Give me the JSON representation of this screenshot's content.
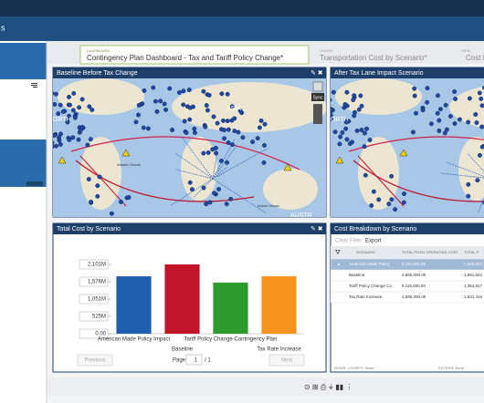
{
  "app": {
    "brand": "s"
  },
  "tabs": [
    {
      "kind": "DASHBOARD",
      "title": "Contingency Plan Dashboard - Tax and Tariff Policy Change*"
    },
    {
      "kind": "GRAPH",
      "title": "Transportation Cost by Scenario*"
    },
    {
      "kind": "VIEW",
      "title": "Cost E"
    }
  ],
  "maps": [
    {
      "title": "Baseline Before Tax Change",
      "labels": [
        "ASIA",
        "ORTH",
        "Atlantic Ocean",
        "Indian Ocean",
        "AUSTR"
      ],
      "sync": "Sync"
    },
    {
      "title": "After Tax Lane Impact Scenario",
      "labels": [
        "ORTH"
      ]
    }
  ],
  "chart_data": {
    "type": "bar",
    "title": "Total Cost by Scenario",
    "categories": [
      "American Made Policy Impact",
      "Baseline",
      "Tariff Policy Change Contingency Plan",
      "Tax Rate Increase"
    ],
    "values": [
      1740,
      2101,
      1550,
      1740
    ],
    "colors": [
      "#1f5fae",
      "#c0152a",
      "#2e9b2e",
      "#f7941d"
    ],
    "ylim": [
      0,
      2101
    ],
    "yticks": [
      {
        "value": 0,
        "label": "0.00"
      },
      {
        "value": 525,
        "label": "525M"
      },
      {
        "value": 1051,
        "label": "1,051M"
      },
      {
        "value": 1576,
        "label": "1,576M"
      },
      {
        "value": 2101,
        "label": "2,101M"
      }
    ]
  },
  "pager": {
    "previous": "Previous",
    "page": "Page",
    "current": "1",
    "total": "/ 1",
    "next": "Next"
  },
  "table": {
    "title": "Cost Breakdown by Scenario",
    "toolbar": [
      "Clear Filter",
      "Export"
    ],
    "columns": [
      "SCENARIO",
      "TOTAL FIXED OPERATING COST",
      "TOTAL P"
    ],
    "rows": [
      [
        "American Made Policy",
        "8,115,000.00",
        "1,506,822."
      ],
      [
        "Baseline",
        "4,865,000.00",
        "1,591,842."
      ],
      [
        "Tariff Policy Change Co",
        "8,115,000.00",
        "1,354,817."
      ],
      [
        "Tax Rate Increase",
        "4,595,000.00",
        "1,531,416."
      ]
    ],
    "footer": [
      "ROWS: 4   SORTS: None",
      "FILTERS: None"
    ]
  }
}
